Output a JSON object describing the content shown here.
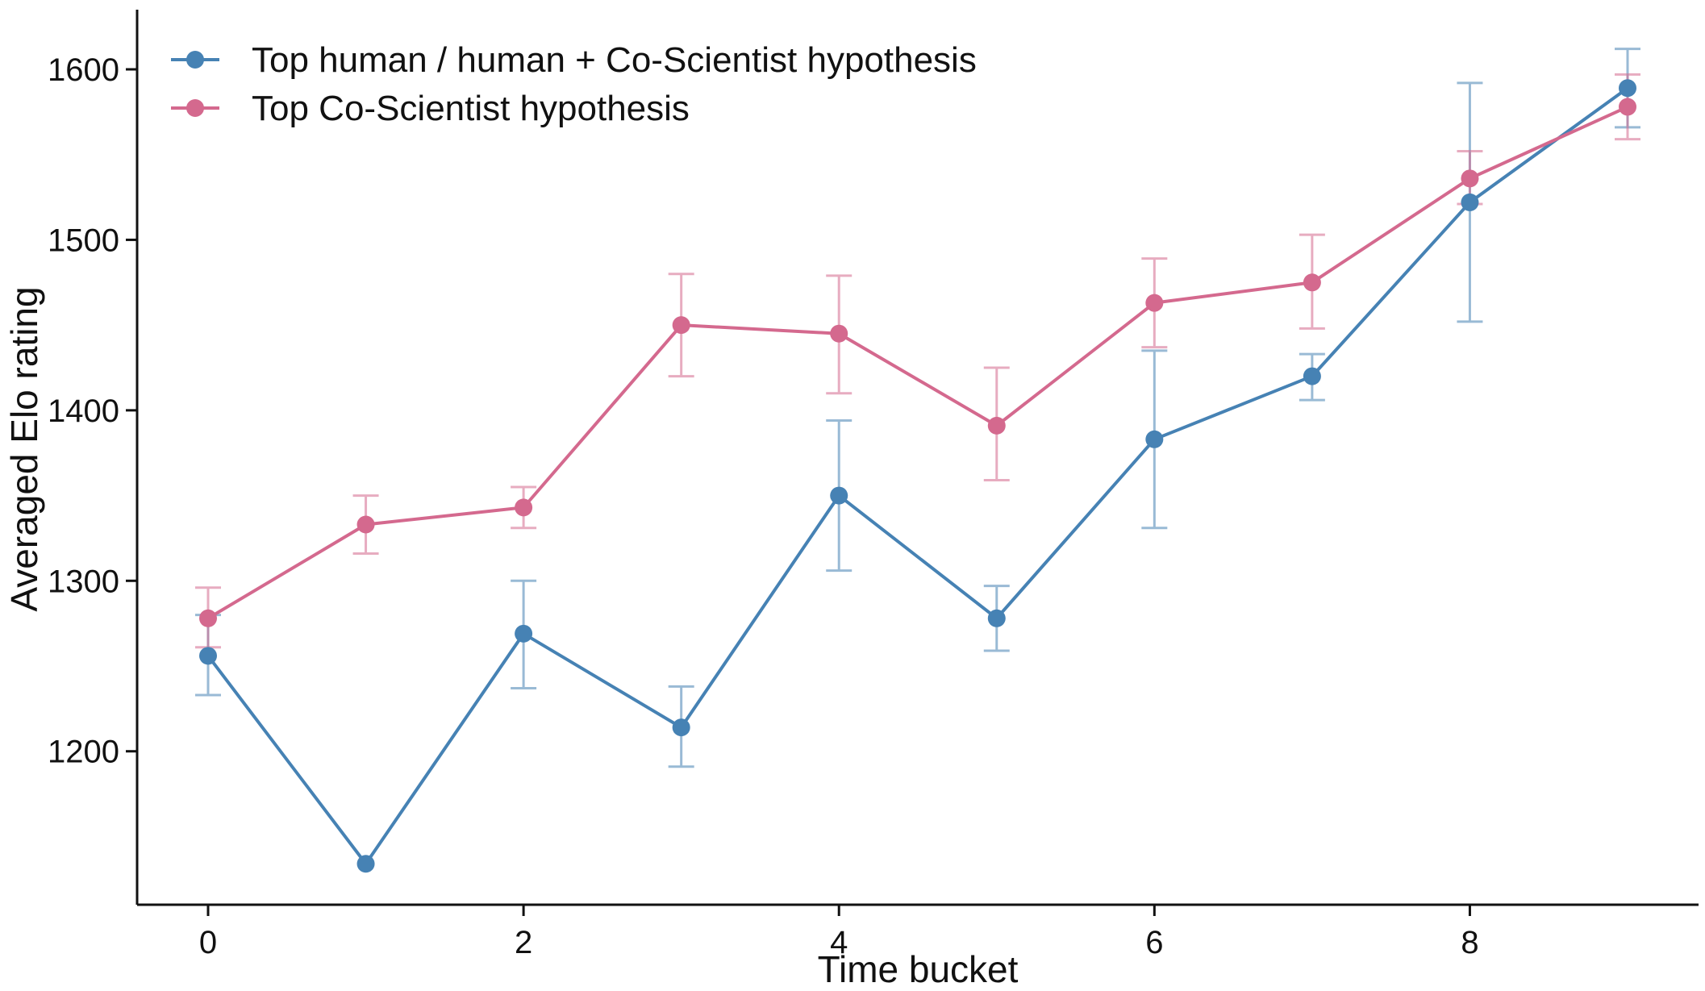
{
  "chart_data": {
    "type": "line",
    "title": "",
    "xlabel": "Time bucket",
    "ylabel": "Averaged Elo rating",
    "xlim": [
      -0.45,
      9.45
    ],
    "ylim": [
      1110,
      1635
    ],
    "xticks": [
      0,
      2,
      4,
      6,
      8
    ],
    "yticks": [
      1200,
      1300,
      1400,
      1500,
      1600
    ],
    "grid": false,
    "legend_position": "top-left",
    "x": [
      0,
      1,
      2,
      3,
      4,
      5,
      6,
      7,
      8,
      9
    ],
    "series": [
      {
        "name": "Top human / human + Co-Scientist hypothesis",
        "color": "#4682b4",
        "values": [
          1256,
          1134,
          1269,
          1214,
          1350,
          1278,
          1383,
          1420,
          1522,
          1589
        ],
        "error_low": [
          1233,
          null,
          1237,
          1191,
          1306,
          1259,
          1331,
          1406,
          1452,
          1566
        ],
        "error_high": [
          1280,
          null,
          1300,
          1238,
          1394,
          1297,
          1435,
          1433,
          1592,
          1612
        ]
      },
      {
        "name": "Top Co-Scientist hypothesis",
        "color": "#d4698e",
        "values": [
          1278,
          1333,
          1343,
          1450,
          1445,
          1391,
          1463,
          1475,
          1536,
          1578
        ],
        "error_low": [
          1261,
          1316,
          1331,
          1420,
          1410,
          1359,
          1437,
          1448,
          1521,
          1559
        ],
        "error_high": [
          1296,
          1350,
          1355,
          1480,
          1479,
          1425,
          1489,
          1503,
          1552,
          1597
        ]
      }
    ]
  }
}
